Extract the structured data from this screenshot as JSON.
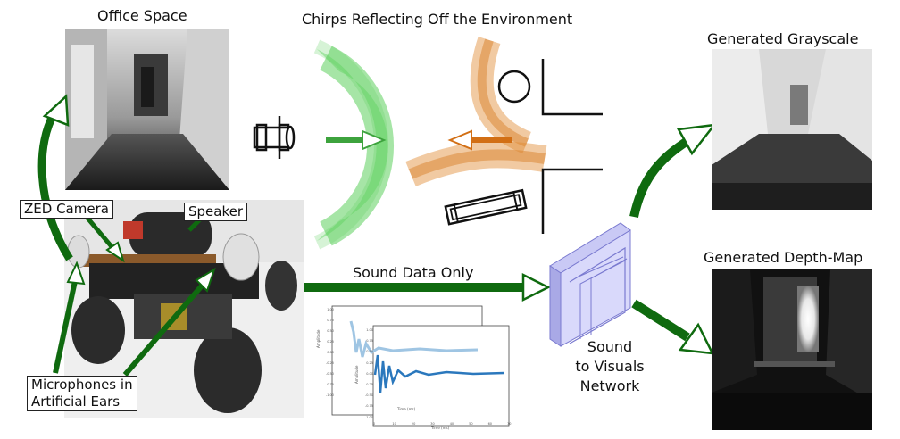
{
  "labels": {
    "office_space": "Office Space",
    "chirps": "Chirps Reflecting Off the Environment",
    "generated_grayscale": "Generated Grayscale",
    "generated_depth": "Generated Depth-Map",
    "sound_data_only": "Sound Data Only",
    "network": [
      "Sound",
      "to Visuals",
      "Network"
    ],
    "zed_camera": "ZED Camera",
    "speaker": "Speaker",
    "microphones": [
      "Microphones in",
      "Artificial Ears"
    ]
  },
  "waveform_plot": {
    "back_ylabel": "Amplitude",
    "front_ylabel": "Amplitude",
    "back_yticks": [
      "1.00",
      "0.75",
      "0.50",
      "0.25",
      "0.00",
      "-0.25",
      "-0.50",
      "-0.75",
      "-1.00"
    ],
    "front_yticks": [
      "1.00",
      "0.75",
      "0.50",
      "0.25",
      "0.00",
      "-0.25",
      "-0.50",
      "-0.75",
      "-1.00"
    ],
    "back_xlabel": "Time (ms)",
    "front_xlabel": "Time (ms)",
    "front_xticks": [
      "0",
      "10",
      "20",
      "30",
      "40",
      "50",
      "60",
      "70"
    ]
  },
  "colors": {
    "arrow_dark_green": "#0f6a0f",
    "chirp_green": "#5ccf5c",
    "chirp_orange": "#d9822b",
    "network_fill": "#c9c9f5",
    "network_edge": "#7a7ad0",
    "wave_light": "#9fc5e3",
    "wave_dark": "#2b78bd"
  },
  "icons": [
    "robot-car-top-icon",
    "circle-object-icon",
    "corner-object-icon",
    "box-object-icon"
  ]
}
